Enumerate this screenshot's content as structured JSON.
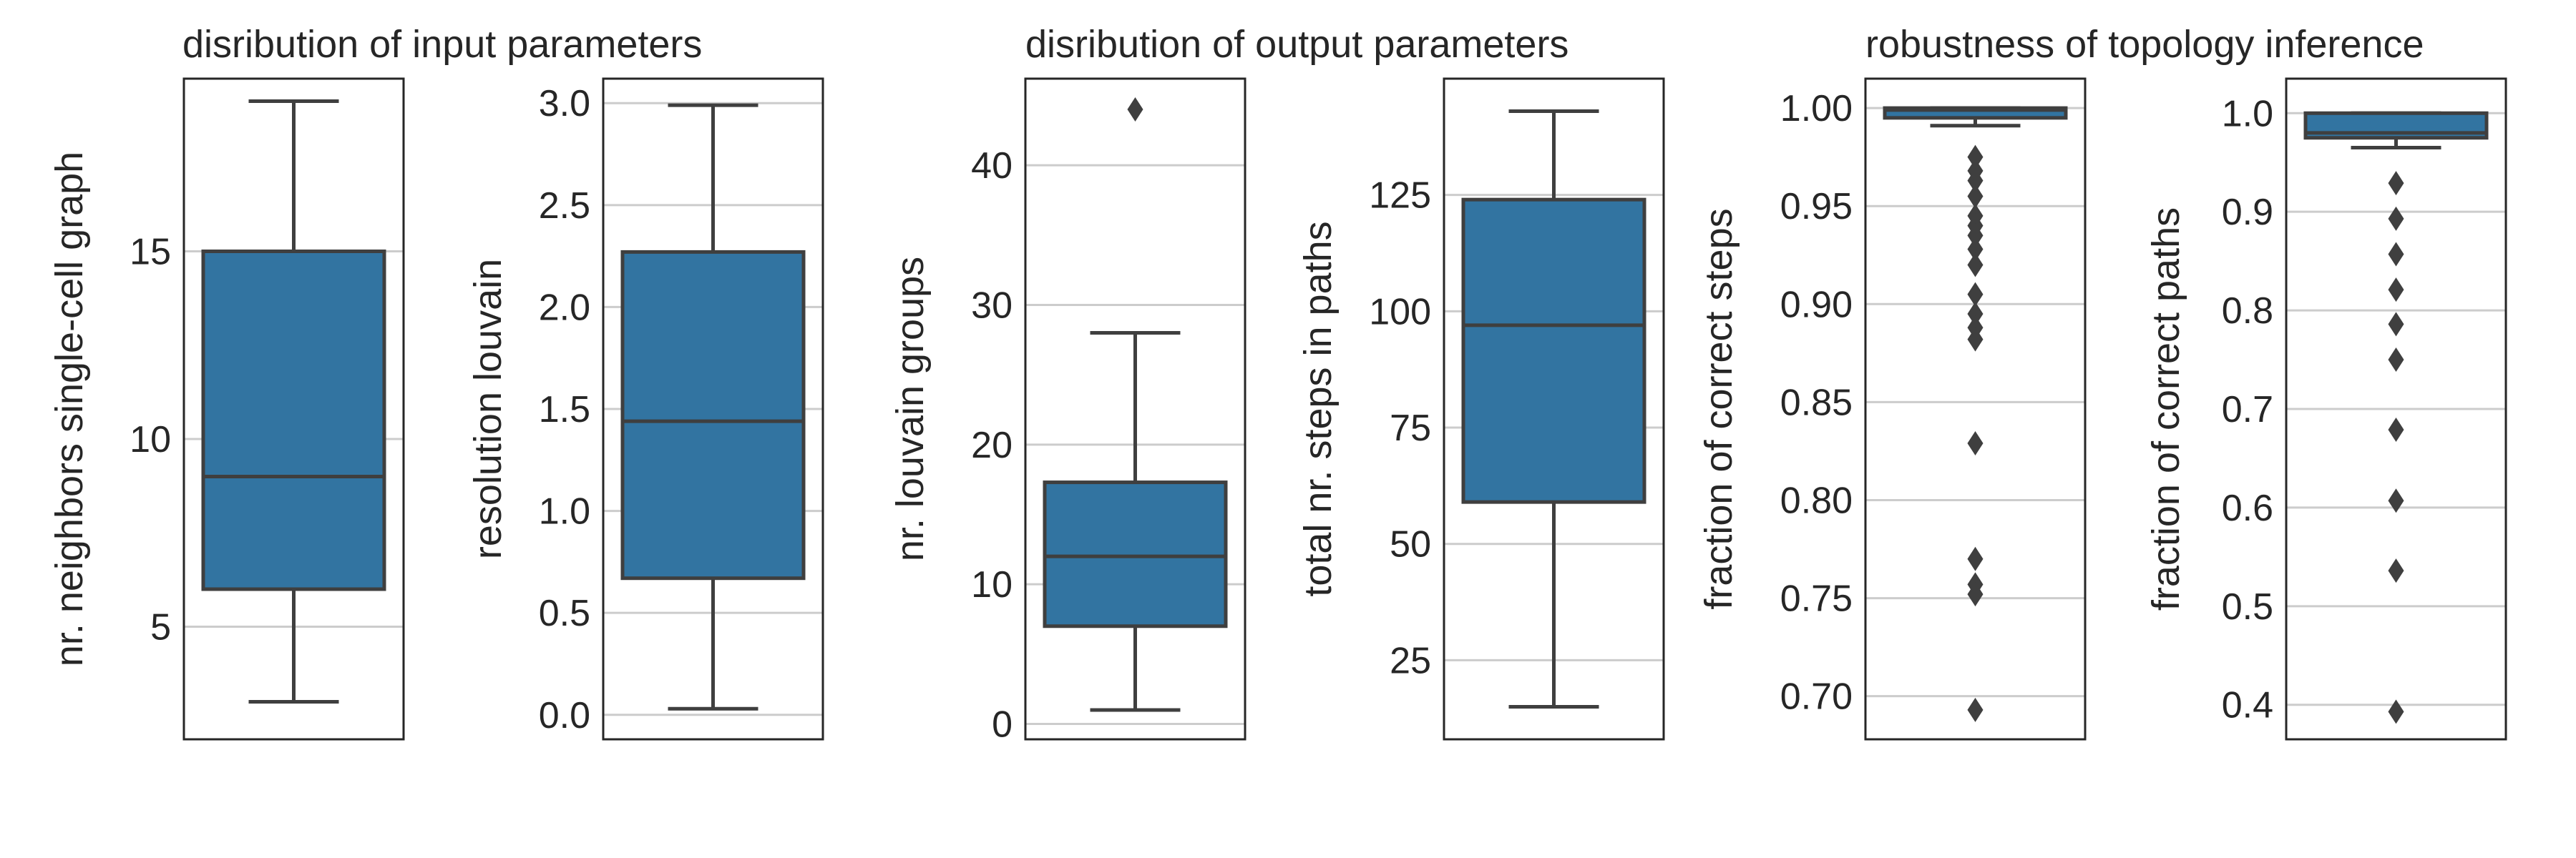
{
  "group_titles": [
    "disribution of input parameters",
    "disribution of output parameters",
    "robustness of topology inference"
  ],
  "colors": {
    "box_fill": "#3274a1",
    "box_edge": "#3f3f3f",
    "grid": "#cccccc",
    "spine": "#262626"
  },
  "chart_data": [
    {
      "type": "box",
      "ylabel": "nr. neighbors single-cell graph",
      "ylim": [
        2,
        19.6
      ],
      "yticks": [
        5,
        10,
        15
      ],
      "ytick_labels": [
        "5",
        "10",
        "15"
      ],
      "grid": true,
      "stats": {
        "whisker_low": 3,
        "q1": 6,
        "median": 9,
        "q3": 15,
        "whisker_high": 19
      },
      "outliers": []
    },
    {
      "type": "box",
      "ylabel": "resolution louvain",
      "ylim": [
        -0.12,
        3.12
      ],
      "yticks": [
        0.0,
        0.5,
        1.0,
        1.5,
        2.0,
        2.5,
        3.0
      ],
      "ytick_labels": [
        "0.0",
        "0.5",
        "1.0",
        "1.5",
        "2.0",
        "2.5",
        "3.0"
      ],
      "grid": true,
      "stats": {
        "whisker_low": 0.03,
        "q1": 0.67,
        "median": 1.44,
        "q3": 2.27,
        "whisker_high": 2.99
      },
      "outliers": []
    },
    {
      "type": "box",
      "ylabel": "nr. louvain groups",
      "ylim": [
        -1.1,
        46.2
      ],
      "yticks": [
        0,
        10,
        20,
        30,
        40
      ],
      "ytick_labels": [
        "0",
        "10",
        "20",
        "30",
        "40"
      ],
      "grid": true,
      "stats": {
        "whisker_low": 1,
        "q1": 7,
        "median": 12,
        "q3": 17.3,
        "whisker_high": 28
      },
      "outliers": [
        44
      ]
    },
    {
      "type": "box",
      "ylabel": "total nr. steps in paths",
      "ylim": [
        8,
        150
      ],
      "yticks": [
        25,
        50,
        75,
        100,
        125
      ],
      "ytick_labels": [
        "25",
        "50",
        "75",
        "100",
        "125"
      ],
      "grid": true,
      "stats": {
        "whisker_low": 15,
        "q1": 59,
        "median": 97,
        "q3": 124,
        "whisker_high": 143
      },
      "outliers": []
    },
    {
      "type": "box",
      "ylabel": "fraction of correct steps",
      "ylim": [
        0.678,
        1.015
      ],
      "yticks": [
        0.7,
        0.75,
        0.8,
        0.85,
        0.9,
        0.95,
        1.0
      ],
      "ytick_labels": [
        "0.70",
        "0.75",
        "0.80",
        "0.85",
        "0.90",
        "0.95",
        "1.00"
      ],
      "grid": true,
      "stats": {
        "whisker_low": 0.991,
        "q1": 0.995,
        "median": 0.999,
        "q3": 1.0,
        "whisker_high": 1.0
      },
      "outliers": [
        0.975,
        0.968,
        0.963,
        0.955,
        0.945,
        0.94,
        0.935,
        0.928,
        0.92,
        0.905,
        0.895,
        0.888,
        0.882,
        0.829,
        0.77,
        0.757,
        0.752,
        0.693
      ]
    },
    {
      "type": "box",
      "ylabel": "fraction of correct paths",
      "ylim": [
        0.365,
        1.035
      ],
      "yticks": [
        0.4,
        0.5,
        0.6,
        0.7,
        0.8,
        0.9,
        1.0
      ],
      "ytick_labels": [
        "0.4",
        "0.5",
        "0.6",
        "0.7",
        "0.8",
        "0.9",
        "1.0"
      ],
      "grid": true,
      "stats": {
        "whisker_low": 0.965,
        "q1": 0.975,
        "median": 0.98,
        "q3": 1.0,
        "whisker_high": 1.0
      },
      "outliers": [
        0.929,
        0.893,
        0.857,
        0.821,
        0.786,
        0.75,
        0.679,
        0.607,
        0.536,
        0.393
      ]
    }
  ]
}
